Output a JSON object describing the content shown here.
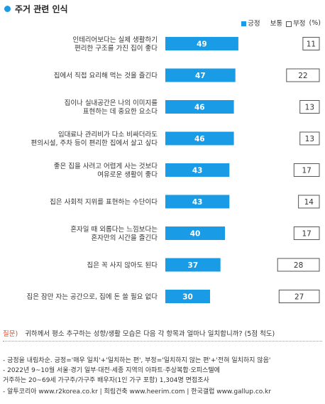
{
  "title": "주거 관련 인식",
  "legend": {
    "positive": "긍정",
    "neutral": "보통",
    "negative": "부정",
    "unit": "(%)"
  },
  "colors": {
    "positive": "#1a9be6",
    "negative_border": "#555555",
    "question_label": "#e04b2a"
  },
  "chart_data": {
    "type": "bar",
    "orientation": "horizontal",
    "categories": [
      [
        "인테리어보다는 실제 생활하기",
        "편리한 구조를 가진 집이 좋다"
      ],
      [
        "집에서 직접 요리해 먹는 것을 즐긴다"
      ],
      [
        "집이나 실내공간은 나의 이미지를",
        "표현하는 데 중요한 요소다"
      ],
      [
        "임대료나 관리비가 다소 비싸더라도",
        "편의시설, 주차 등이 편리한 집에서 살고 싶다"
      ],
      [
        "좋은 집을 사려고 어렵게 사는 것보다",
        "여유로운 생활이 좋다"
      ],
      [
        "집은 사회적 지위를 표현하는 수단이다"
      ],
      [
        "혼자일 때 외롭다는 느낌보다는",
        "혼자만의 시간을 즐긴다"
      ],
      [
        "집은 꼭 사지 않아도 된다"
      ],
      [
        "집은 잠만 자는 공간으로, 집에 돈 쓸 필요 없다"
      ]
    ],
    "series": [
      {
        "name": "긍정",
        "values": [
          49,
          47,
          46,
          46,
          43,
          43,
          40,
          37,
          30
        ]
      },
      {
        "name": "부정",
        "values": [
          11,
          22,
          13,
          13,
          17,
          14,
          17,
          28,
          27
        ]
      }
    ]
  },
  "footer": {
    "question_label": "질문)",
    "question": "귀하께서 평소 추구하는 성향/생활 모습은 다음 각 항목과 얼마나 일치합니까? (5점 척도)",
    "notes": [
      "- 긍정을 내림차순. 긍정='매우 일치'+'일치하는 편', 부정='일치하지 않는 편'+'전혀 일치하지 않음'",
      "- 2022년 9~10월 서울·경기 일부·대전·세종 지역의 아파트·주상복합·오피스텔에",
      "   거주하는 20~69세 가구주/가구주 배우자(1인 가구 포함) 1,304명 면접조사",
      "- 알투코리아 www.r2korea.co.kr | 희림건축 www.heerim.com | 한국갤럽 www.gallup.co.kr"
    ]
  }
}
